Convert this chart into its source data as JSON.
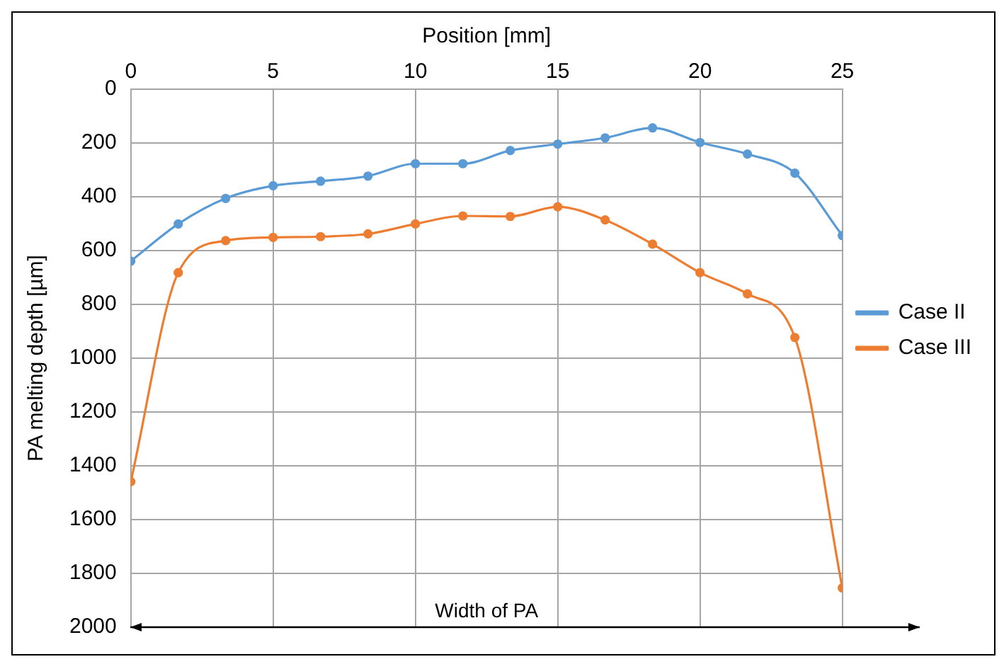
{
  "chart_data": {
    "type": "line",
    "xlabel": "Position [mm]",
    "ylabel": "PA melting depth [µm]",
    "x": [
      0,
      1.667,
      3.333,
      5,
      6.667,
      8.333,
      10,
      11.667,
      13.333,
      15,
      16.667,
      18.333,
      20,
      21.667,
      23.333,
      25
    ],
    "series": [
      {
        "name": "Case II",
        "color": "#5b9bd5",
        "values": [
          639,
          501,
          406,
          359,
          342,
          323,
          277,
          277,
          228,
          204,
          181,
          144,
          198,
          241,
          312,
          544
        ]
      },
      {
        "name": "Case III",
        "color": "#ed7d31",
        "values": [
          1459,
          682,
          563,
          551,
          548,
          538,
          501,
          471,
          473,
          437,
          486,
          576,
          682,
          761,
          923,
          1854
        ]
      }
    ],
    "xlim": [
      0,
      25
    ],
    "xticks": [
      0,
      5,
      10,
      15,
      20,
      25
    ],
    "ylim": [
      2000,
      0
    ],
    "yticks": [
      0,
      200,
      400,
      600,
      800,
      1000,
      1200,
      1400,
      1600,
      1800,
      2000
    ],
    "grid": true,
    "legend": "right",
    "marker": "circle",
    "line_style": "solid",
    "annotations": [
      "Width of PA"
    ]
  }
}
